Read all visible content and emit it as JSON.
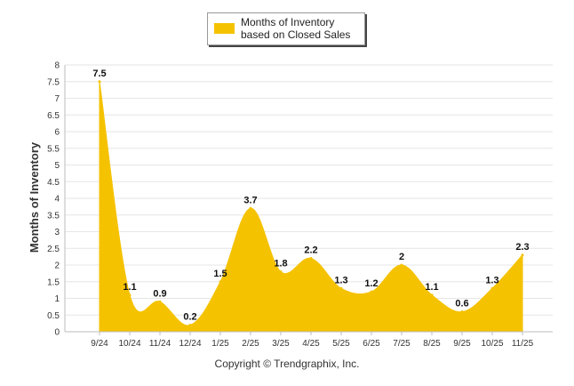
{
  "legend": {
    "label": "Months of Inventory based on Closed Sales"
  },
  "footer": {
    "copyright": "Copyright © Trendgraphix, Inc."
  },
  "colors": {
    "series": "#F5C200",
    "grid": "#e6e6e6",
    "axis": "#bdbdbd"
  },
  "chart_data": {
    "type": "area",
    "title": "",
    "xlabel": "",
    "ylabel": "Months of Inventory",
    "categories": [
      "9/24",
      "10/24",
      "11/24",
      "12/24",
      "1/25",
      "2/25",
      "3/25",
      "4/25",
      "5/25",
      "6/25",
      "7/25",
      "8/25",
      "9/25",
      "10/25",
      "11/25"
    ],
    "series": [
      {
        "name": "Months of Inventory based on Closed Sales",
        "values": [
          7.5,
          1.1,
          0.9,
          0.2,
          1.5,
          3.7,
          1.8,
          2.2,
          1.3,
          1.2,
          2,
          1.1,
          0.6,
          1.3,
          2.3
        ]
      }
    ],
    "data_labels": [
      "7.5",
      "1.1",
      "0.9",
      "0.2",
      "1.5",
      "3.7",
      "1.8",
      "2.2",
      "1.3",
      "1.2",
      "2",
      "1.1",
      "0.6",
      "1.3",
      "2.3"
    ],
    "ylim": [
      0,
      8
    ],
    "yticks": [
      "0",
      "0.5",
      "1",
      "1.5",
      "2",
      "2.5",
      "3",
      "3.5",
      "4",
      "4.5",
      "5",
      "5.5",
      "6",
      "6.5",
      "7",
      "7.5",
      "8"
    ],
    "grid": true,
    "legend_position": "top-center"
  }
}
